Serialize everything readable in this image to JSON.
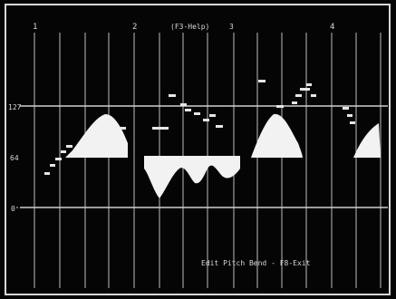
{
  "header": {
    "help_text": "(F3-Help)",
    "bar_markers": [
      "1",
      "2",
      "3",
      "4"
    ]
  },
  "axis": {
    "labels": [
      "127",
      "64",
      "0"
    ]
  },
  "footer": {
    "status": "Edit Pitch Bend - F8-Exit"
  },
  "colors": {
    "background": "#050505",
    "frame": "#d8d8d8",
    "grid": "#bdbdbd",
    "waveform": "#f2f2f2",
    "notes": "#e6e6e6"
  }
}
